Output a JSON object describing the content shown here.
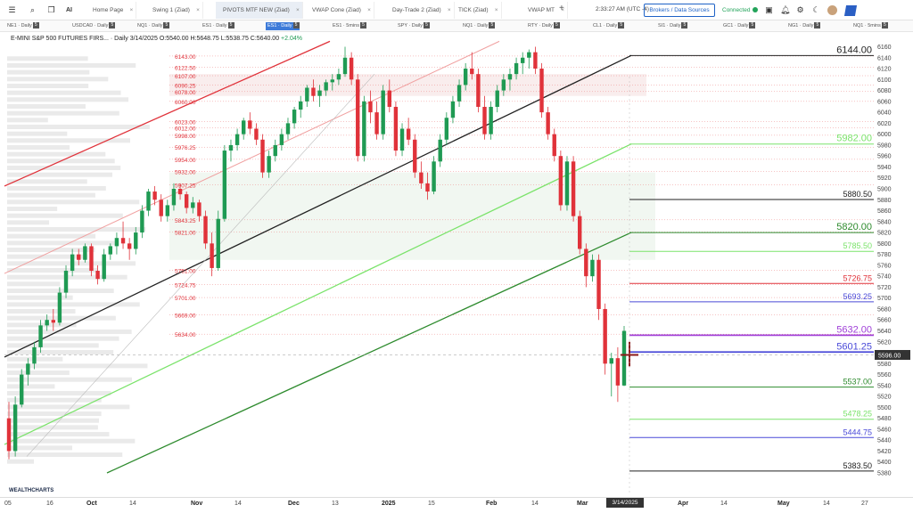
{
  "header": {
    "tabs": [
      {
        "label": "Home Page"
      },
      {
        "label": "Swing 1 (Ziad)"
      },
      {
        "label": "PIVOTS MTF NEW (Ziad)"
      },
      {
        "label": "VWAP Cone (Ziad)"
      },
      {
        "label": "Day-Trade 2 (Ziad)"
      },
      {
        "label": "TICK (Ziad)"
      },
      {
        "label": "VWAP MT"
      }
    ],
    "clock": "2:33:27 AM (UTC -4)",
    "brokers_label": "Brokers / Data Sources",
    "status": "Connected",
    "logo": "WEALTHCHARTS",
    "icons": [
      "menu-icon",
      "search-icon",
      "copy-icon",
      "ai-icon",
      "save-icon",
      "bell-icon",
      "gear-icon",
      "moon-icon",
      "avatar-icon"
    ]
  },
  "symbols": [
    {
      "label": "NE1 · Daily",
      "n": "5"
    },
    {
      "label": "USDCAD · Daily",
      "n": "5"
    },
    {
      "label": "NQ1 · Daily",
      "n": "5"
    },
    {
      "label": "ES1 · Daily",
      "n": "5"
    },
    {
      "label": "ES1 · Daily",
      "n": "5"
    },
    {
      "label": "ES1 · 5mins",
      "n": "5"
    },
    {
      "label": "SPY · Daily",
      "n": "5"
    },
    {
      "label": "NQ1 · Daily",
      "n": "5"
    },
    {
      "label": "RTY · Daily",
      "n": "5"
    },
    {
      "label": "CL1 · Daily",
      "n": "5"
    },
    {
      "label": "SI1 · Daily",
      "n": "5"
    },
    {
      "label": "GC1 · Daily",
      "n": "5"
    },
    {
      "label": "NG1 · Daily",
      "n": "5"
    },
    {
      "label": "NQ1 · 5mins",
      "n": "5"
    }
  ],
  "legend": {
    "name": "E-MINI S&P 500 FUTURES FIRS...",
    "interval": "· Daily",
    "date": "3/14/2025",
    "ohlc": "O:5540.00 H:5648.75 L:5538.75 C:5640.00",
    "change": "+2.04%"
  },
  "colors": {
    "up": "#1f9a53",
    "down": "#e0323a",
    "red": "#e0323a",
    "black": "#222222",
    "lightgreen": "#7be36b",
    "darkgreen": "#2e8b2e",
    "purple": "#a040d8",
    "blue": "#4a4ad8"
  },
  "chart_data": {
    "type": "candlestick",
    "ylim": [
      5370,
      6170
    ],
    "y_ticks": [
      6160,
      6140,
      6120,
      6100,
      6080,
      6060,
      6040,
      6020,
      6000,
      5980,
      5960,
      5940,
      5920,
      5900,
      5880,
      5860,
      5840,
      5820,
      5800,
      5780,
      5760,
      5740,
      5720,
      5700,
      5680,
      5660,
      5640,
      5620,
      5600,
      5580,
      5560,
      5540,
      5520,
      5500,
      5480,
      5460,
      5440,
      5420,
      5400,
      5380
    ],
    "current_price": "5596.00",
    "x_labels": [
      {
        "t": "05",
        "b": false
      },
      {
        "t": "16",
        "b": false
      },
      {
        "t": "Oct",
        "b": true
      },
      {
        "t": "14",
        "b": false
      },
      {
        "t": "Nov",
        "b": true
      },
      {
        "t": "14",
        "b": false
      },
      {
        "t": "Dec",
        "b": true
      },
      {
        "t": "13",
        "b": false
      },
      {
        "t": "2025",
        "b": true
      },
      {
        "t": "15",
        "b": false
      },
      {
        "t": "Feb",
        "b": true
      },
      {
        "t": "14",
        "b": false
      },
      {
        "t": "Mar",
        "b": true
      },
      {
        "t": "Apr",
        "b": true
      },
      {
        "t": "14",
        "b": false
      },
      {
        "t": "May",
        "b": true
      },
      {
        "t": "14",
        "b": false
      },
      {
        "t": "27",
        "b": false
      }
    ],
    "current_date": "3/14/2025",
    "left_levels": [
      "6143.00",
      "6122.50",
      "6107.00",
      "6090.25",
      "6078.00",
      "6060.00",
      "6023.00",
      "6012.00",
      "5998.00",
      "5976.25",
      "5954.00",
      "5932.00",
      "5907.25",
      "5843.25",
      "5821.00",
      "5751.00",
      "5724.75",
      "5701.00",
      "5669.00",
      "5634.00"
    ],
    "right_levels": [
      {
        "label": "6144.00",
        "v": 6144,
        "c": "black"
      },
      {
        "label": "5982.00",
        "v": 5982,
        "c": "lightgreen"
      },
      {
        "label": "5880.50",
        "v": 5880.5,
        "c": "black"
      },
      {
        "label": "5820.00",
        "v": 5820,
        "c": "darkgreen"
      },
      {
        "label": "5785.50",
        "v": 5785.5,
        "c": "lightgreen"
      },
      {
        "label": "5726.75",
        "v": 5726.75,
        "c": "red"
      },
      {
        "label": "5693.25",
        "v": 5693.25,
        "c": "blue"
      },
      {
        "label": "5632.00",
        "v": 5632,
        "c": "purple"
      },
      {
        "label": "5601.25",
        "v": 5601.25,
        "c": "blue"
      },
      {
        "label": "5537.00",
        "v": 5537,
        "c": "darkgreen"
      },
      {
        "label": "5478.25",
        "v": 5478.25,
        "c": "lightgreen"
      },
      {
        "label": "5444.75",
        "v": 5444.75,
        "c": "blue"
      },
      {
        "label": "5383.50",
        "v": 5383.5,
        "c": "black"
      }
    ],
    "candles": [
      [
        5480,
        5510,
        5405,
        5420
      ],
      [
        5420,
        5520,
        5410,
        5505
      ],
      [
        5505,
        5570,
        5500,
        5560
      ],
      [
        5560,
        5590,
        5540,
        5580
      ],
      [
        5580,
        5620,
        5570,
        5610
      ],
      [
        5610,
        5660,
        5600,
        5650
      ],
      [
        5650,
        5670,
        5640,
        5660
      ],
      [
        5660,
        5680,
        5640,
        5655
      ],
      [
        5655,
        5720,
        5650,
        5710
      ],
      [
        5710,
        5760,
        5700,
        5750
      ],
      [
        5750,
        5790,
        5740,
        5780
      ],
      [
        5780,
        5790,
        5760,
        5770
      ],
      [
        5770,
        5800,
        5765,
        5795
      ],
      [
        5795,
        5800,
        5740,
        5750
      ],
      [
        5750,
        5760,
        5725,
        5735
      ],
      [
        5735,
        5790,
        5730,
        5780
      ],
      [
        5780,
        5800,
        5770,
        5795
      ],
      [
        5795,
        5820,
        5780,
        5810
      ],
      [
        5810,
        5840,
        5790,
        5800
      ],
      [
        5800,
        5810,
        5770,
        5790
      ],
      [
        5790,
        5830,
        5780,
        5820
      ],
      [
        5820,
        5870,
        5810,
        5860
      ],
      [
        5860,
        5900,
        5850,
        5895
      ],
      [
        5895,
        5905,
        5870,
        5880
      ],
      [
        5880,
        5890,
        5840,
        5850
      ],
      [
        5850,
        5880,
        5840,
        5870
      ],
      [
        5870,
        5910,
        5860,
        5900
      ],
      [
        5900,
        5910,
        5880,
        5890
      ],
      [
        5890,
        5895,
        5855,
        5865
      ],
      [
        5865,
        5885,
        5855,
        5875
      ],
      [
        5875,
        5880,
        5840,
        5850
      ],
      [
        5850,
        5860,
        5790,
        5800
      ],
      [
        5800,
        5820,
        5740,
        5755
      ],
      [
        5755,
        5860,
        5750,
        5845
      ],
      [
        5845,
        5980,
        5840,
        5970
      ],
      [
        5970,
        5990,
        5950,
        5980
      ],
      [
        5980,
        6010,
        5970,
        6000
      ],
      [
        6000,
        6030,
        5990,
        6025
      ],
      [
        6025,
        6040,
        6000,
        6010
      ],
      [
        6010,
        6020,
        5980,
        5990
      ],
      [
        5990,
        6000,
        5920,
        5930
      ],
      [
        5930,
        5970,
        5920,
        5960
      ],
      [
        5960,
        5990,
        5950,
        5980
      ],
      [
        5980,
        6010,
        5970,
        6000
      ],
      [
        6000,
        6030,
        5990,
        6020
      ],
      [
        6020,
        6050,
        6010,
        6045
      ],
      [
        6045,
        6070,
        6030,
        6060
      ],
      [
        6060,
        6090,
        6050,
        6085
      ],
      [
        6085,
        6100,
        6060,
        6070
      ],
      [
        6070,
        6090,
        6050,
        6080
      ],
      [
        6080,
        6100,
        6070,
        6095
      ],
      [
        6095,
        6110,
        6080,
        6100
      ],
      [
        6100,
        6120,
        6090,
        6110
      ],
      [
        6110,
        6160,
        6105,
        6140
      ],
      [
        6140,
        6150,
        6090,
        6100
      ],
      [
        6100,
        6110,
        5950,
        5960
      ],
      [
        5960,
        6070,
        5950,
        6060
      ],
      [
        6060,
        6080,
        6020,
        6040
      ],
      [
        6040,
        6060,
        5990,
        6000
      ],
      [
        6000,
        6090,
        5990,
        6080
      ],
      [
        6080,
        6100,
        6040,
        6050
      ],
      [
        6050,
        6060,
        5960,
        5970
      ],
      [
        5970,
        6020,
        5960,
        6010
      ],
      [
        6010,
        6030,
        5980,
        5990
      ],
      [
        5990,
        6000,
        5920,
        5930
      ],
      [
        5930,
        5950,
        5900,
        5910
      ],
      [
        5910,
        5930,
        5880,
        5895
      ],
      [
        5895,
        5960,
        5890,
        5950
      ],
      [
        5950,
        6000,
        5940,
        5990
      ],
      [
        5990,
        6040,
        5980,
        6030
      ],
      [
        6030,
        6070,
        6020,
        6060
      ],
      [
        6060,
        6100,
        6050,
        6090
      ],
      [
        6090,
        6130,
        6080,
        6120
      ],
      [
        6120,
        6150,
        6100,
        6110
      ],
      [
        6110,
        6120,
        6040,
        6050
      ],
      [
        6050,
        6070,
        5990,
        6000
      ],
      [
        6000,
        6060,
        5990,
        6050
      ],
      [
        6050,
        6090,
        6040,
        6080
      ],
      [
        6080,
        6110,
        6070,
        6100
      ],
      [
        6100,
        6120,
        6080,
        6110
      ],
      [
        6110,
        6140,
        6100,
        6130
      ],
      [
        6130,
        6150,
        6110,
        6140
      ],
      [
        6140,
        6155,
        6120,
        6150
      ],
      [
        6150,
        6160,
        6110,
        6120
      ],
      [
        6120,
        6130,
        6030,
        6040
      ],
      [
        6040,
        6050,
        5990,
        6000
      ],
      [
        6000,
        6010,
        5950,
        5960
      ],
      [
        5960,
        5970,
        5860,
        5870
      ],
      [
        5870,
        5960,
        5860,
        5950
      ],
      [
        5950,
        5960,
        5840,
        5850
      ],
      [
        5850,
        5860,
        5780,
        5790
      ],
      [
        5790,
        5800,
        5720,
        5740
      ],
      [
        5740,
        5780,
        5730,
        5770
      ],
      [
        5770,
        5780,
        5660,
        5680
      ],
      [
        5680,
        5690,
        5560,
        5580
      ],
      [
        5580,
        5600,
        5520,
        5590
      ],
      [
        5590,
        5610,
        5510,
        5540
      ],
      [
        5540,
        5649,
        5539,
        5640
      ]
    ]
  }
}
